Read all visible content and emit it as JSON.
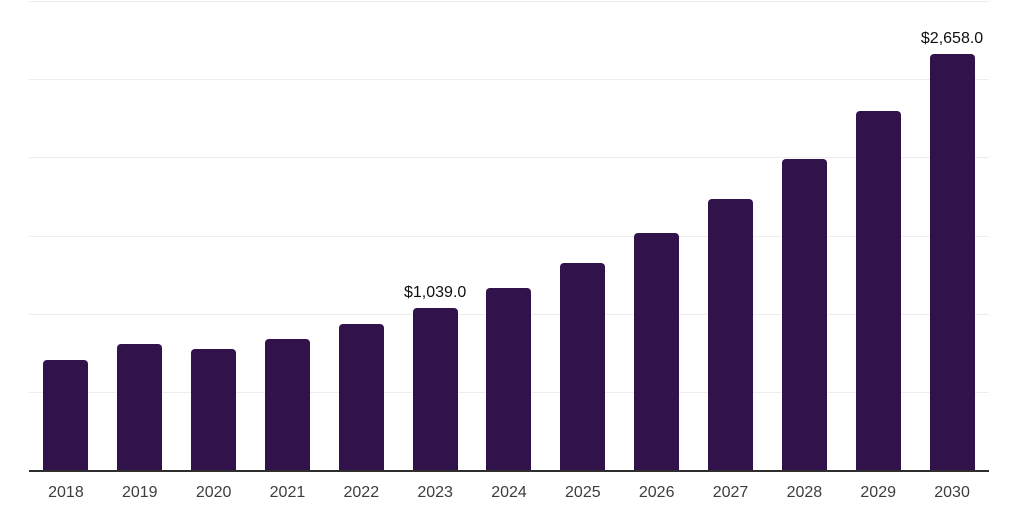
{
  "chart_data": {
    "type": "bar",
    "title": "",
    "xlabel": "",
    "ylabel": "",
    "categories": [
      "2018",
      "2019",
      "2020",
      "2021",
      "2022",
      "2023",
      "2024",
      "2025",
      "2026",
      "2027",
      "2028",
      "2029",
      "2030"
    ],
    "values": [
      705,
      805,
      773,
      838,
      936,
      1039,
      1163,
      1323,
      1513,
      1732,
      1987,
      2294,
      2658
    ],
    "value_labels": [
      "",
      "",
      "",
      "",
      "",
      "$1,039.0",
      "",
      "",
      "",
      "",
      "",
      "",
      "$2,658.0"
    ],
    "ylim": [
      0,
      3000
    ],
    "gridline_step": 500,
    "grid": "horizontal",
    "legend": "none"
  },
  "style": {
    "bar_color": "#32124a",
    "axis_color": "#2e2e2e",
    "gridline_color": "#ededed",
    "value_label_color": "#0f0f0f",
    "tick_label_color": "#3d3d3d",
    "background": "#ffffff"
  }
}
